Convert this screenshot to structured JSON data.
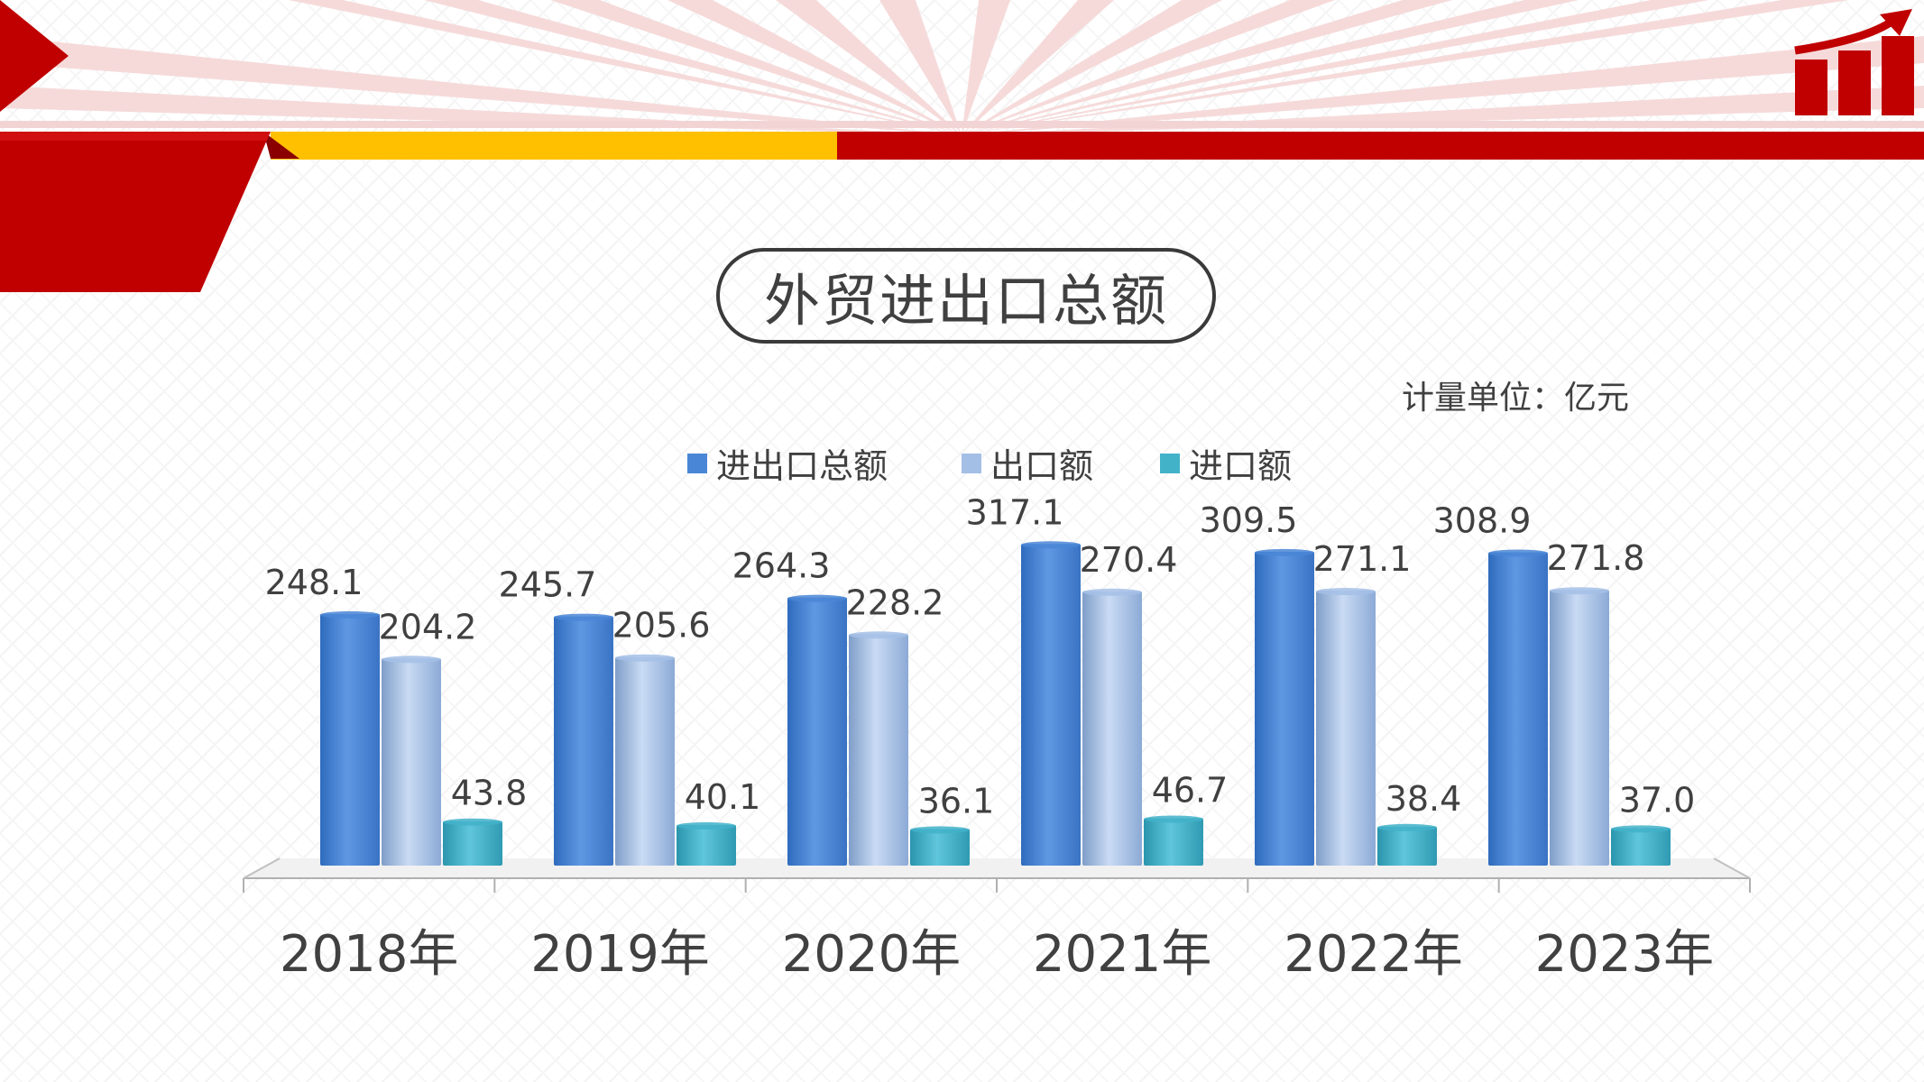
{
  "slide": {
    "title": "外贸进出口总额",
    "unit": "计量单位：亿元"
  },
  "colors": {
    "red": "#c00000",
    "yellow": "#ffc000",
    "series": [
      "#4a86d6",
      "#a4bfe6",
      "#42b2c9"
    ]
  },
  "chart_data": {
    "type": "bar",
    "title": "外贸进出口总额",
    "unit": "亿元",
    "categories": [
      "2018年",
      "2019年",
      "2020年",
      "2021年",
      "2022年",
      "2023年"
    ],
    "series": [
      {
        "name": "进出口总额",
        "values": [
          248.1,
          245.7,
          264.3,
          317.1,
          309.5,
          308.9
        ]
      },
      {
        "name": "出口额",
        "values": [
          204.2,
          205.6,
          228.2,
          270.4,
          271.1,
          271.8
        ]
      },
      {
        "name": "进口额",
        "values": [
          43.8,
          40.1,
          36.1,
          46.7,
          38.4,
          37.0
        ]
      }
    ],
    "ylim": [
      0,
      320
    ],
    "grid": false,
    "legend": "top-center"
  }
}
